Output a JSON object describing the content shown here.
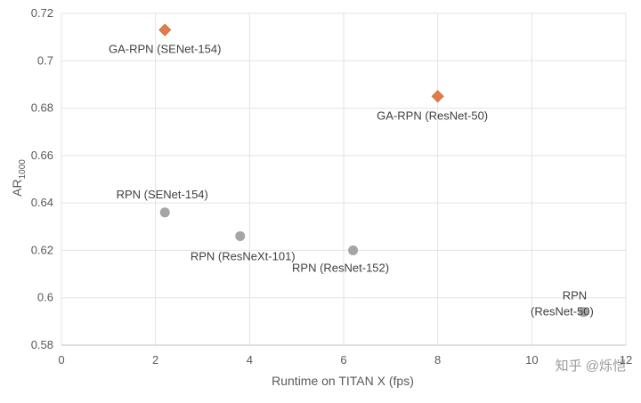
{
  "chart_data": {
    "type": "scatter",
    "title": "",
    "xlabel": "Runtime on TITAN X (fps)",
    "ylabel": "AR",
    "ylabel_subscript": "1000",
    "xlim": [
      0,
      12
    ],
    "ylim": [
      0.58,
      0.72
    ],
    "xticks": [
      "0",
      "2",
      "4",
      "6",
      "8",
      "10",
      "12"
    ],
    "yticks": [
      "0.58",
      "0.6",
      "0.62",
      "0.64",
      "0.66",
      "0.68",
      "0.7",
      "0.72"
    ],
    "grid": true,
    "series": [
      {
        "marker": "diamond",
        "color": "#E07B4A",
        "points": [
          {
            "x": 2.2,
            "y": 0.713,
            "label": "GA-RPN (SENet-154)"
          },
          {
            "x": 8.0,
            "y": 0.685,
            "label": "GA-RPN (ResNet-50)"
          }
        ]
      },
      {
        "marker": "circle",
        "color": "#A5A5A5",
        "points": [
          {
            "x": 2.2,
            "y": 0.636,
            "label": "RPN (SENet-154)"
          },
          {
            "x": 3.8,
            "y": 0.626,
            "label": "RPN (ResNeXt-101)"
          },
          {
            "x": 6.2,
            "y": 0.62,
            "label": "RPN (ResNet-152)"
          },
          {
            "x": 11.1,
            "y": 0.594,
            "label": "RPN (ResNet-50)"
          }
        ]
      }
    ]
  },
  "watermark": "知乎 @烁恺"
}
